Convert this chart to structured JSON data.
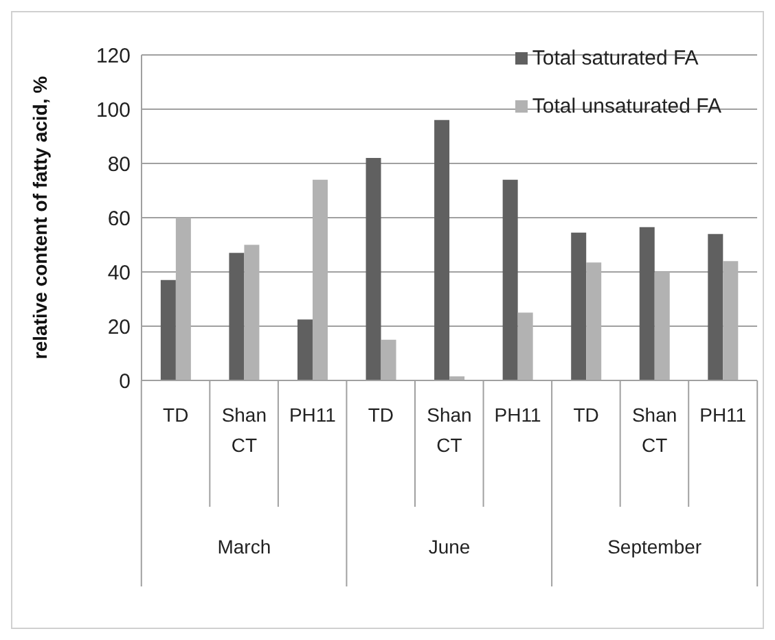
{
  "chart_data": {
    "type": "bar",
    "ylabel": "relative content of fatty acid, %",
    "categories": [
      "TD",
      "Shan CT",
      "PH11",
      "TD",
      "Shan CT",
      "PH11",
      "TD",
      "Shan CT",
      "PH11"
    ],
    "annotations": [
      "March",
      "June",
      "September"
    ],
    "series": [
      {
        "name": "Total saturated FA",
        "color": "#606060",
        "values": [
          37,
          47,
          22.5,
          82,
          96,
          74,
          54.5,
          56.5,
          54
        ]
      },
      {
        "name": "Total unsaturated FA",
        "color": "#b2b2b2",
        "values": [
          60,
          50,
          74,
          15,
          1.5,
          25,
          43.5,
          40,
          44
        ]
      }
    ],
    "ylim": [
      0,
      120
    ],
    "yticks": [
      0,
      20,
      40,
      60,
      80,
      100,
      120
    ],
    "grid": "y",
    "legend": "top right"
  }
}
